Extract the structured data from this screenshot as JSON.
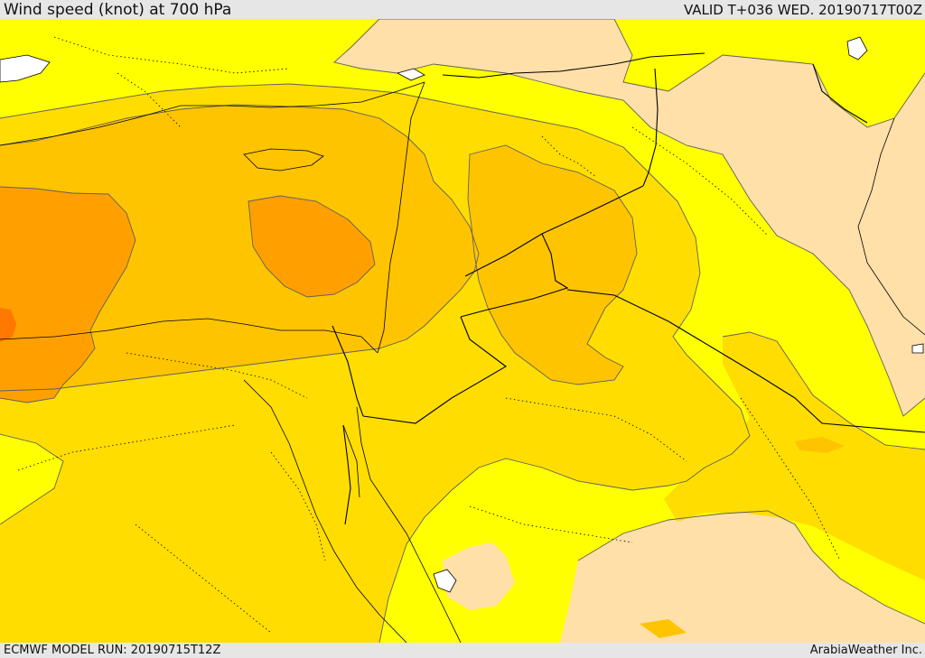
{
  "header": {
    "title": "Wind speed (knot) at 700 hPa",
    "valid": "VALID T+036 WED. 20190717T00Z"
  },
  "footer": {
    "model_run": "ECMWF MODEL RUN: 20190715T12Z",
    "credit": "ArabiaWeather Inc."
  },
  "colors": {
    "band_lowest": "#ffe0a8",
    "band_low": "#ffff00",
    "band_mid": "#ffdd00",
    "band_high": "#ffc400",
    "band_higher": "#ffa000",
    "band_highest": "#ff7800",
    "water": "#ffffff",
    "contour_line": "#606060",
    "border_line": "#000000"
  }
}
